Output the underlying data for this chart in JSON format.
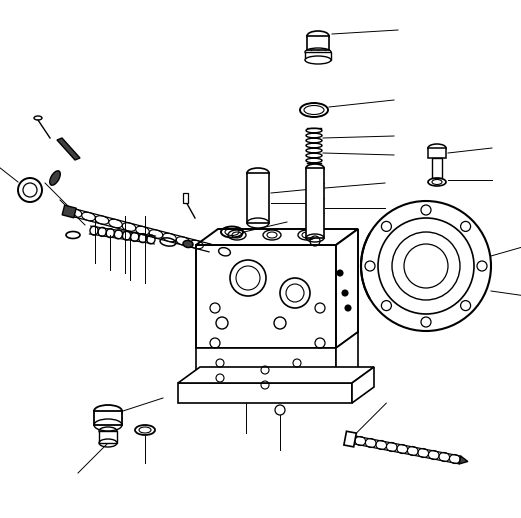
{
  "background_color": "#ffffff",
  "line_color": "#000000",
  "fig_width": 5.21,
  "fig_height": 5.18,
  "dpi": 100,
  "lw_main": 1.2,
  "lw_thin": 0.7,
  "lw_leader": 0.7
}
